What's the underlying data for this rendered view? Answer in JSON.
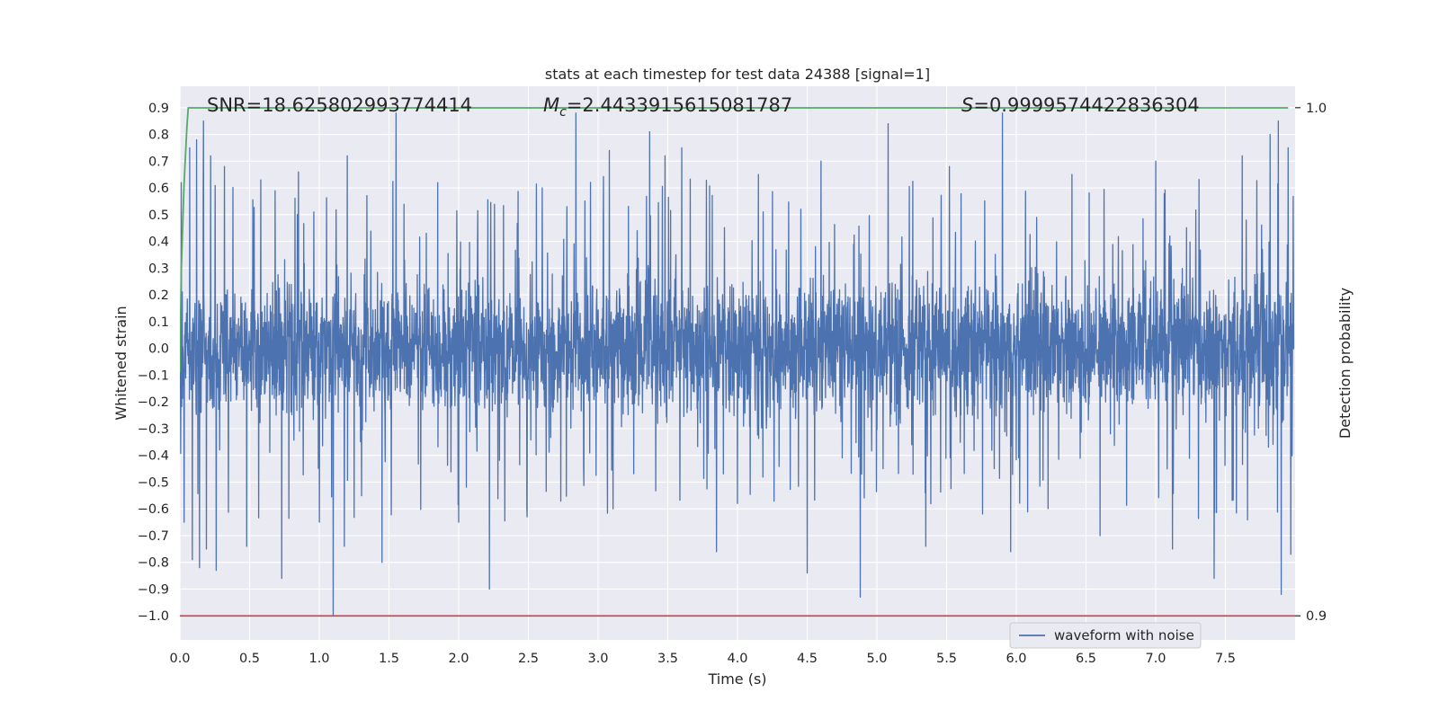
{
  "chart_data": {
    "type": "line",
    "title": "stats at each timestep for test data 24388 [signal=1]",
    "xlabel": "Time (s)",
    "ylabel": "Whitened strain",
    "y2label": "Detection probability",
    "xlim": [
      0.0,
      8.0
    ],
    "ylim": [
      -1.09,
      0.98
    ],
    "y2lim": [
      0.9,
      1.0
    ],
    "xticks": [
      0.0,
      0.5,
      1.0,
      1.5,
      2.0,
      2.5,
      3.0,
      3.5,
      4.0,
      4.5,
      5.0,
      5.5,
      6.0,
      6.5,
      7.0,
      7.5
    ],
    "xtick_labels": [
      "0.0",
      "0.5",
      "1.0",
      "1.5",
      "2.0",
      "2.5",
      "3.0",
      "3.5",
      "4.0",
      "4.5",
      "5.0",
      "5.5",
      "6.0",
      "6.5",
      "7.0",
      "7.5"
    ],
    "yticks": [
      0.9,
      0.8,
      0.7,
      0.6,
      0.5,
      0.4,
      0.3,
      0.2,
      0.1,
      0.0,
      -0.1,
      -0.2,
      -0.3,
      -0.4,
      -0.5,
      -0.6,
      -0.7,
      -0.8,
      -0.9,
      -1.0
    ],
    "ytick_labels": [
      "0.9",
      "0.8",
      "0.7",
      "0.6",
      "0.5",
      "0.4",
      "0.3",
      "0.2",
      "0.1",
      "0.0",
      "−0.1",
      "−0.2",
      "−0.3",
      "−0.4",
      "−0.5",
      "−0.6",
      "−0.7",
      "−0.8",
      "−0.9",
      "−1.0"
    ],
    "y2ticks": [
      1.0,
      0.9
    ],
    "y2tick_labels": [
      "1.0",
      "0.9"
    ],
    "grid": true,
    "legend_position": "lower-right",
    "annotations": {
      "snr": "SNR=18.625802993774414",
      "mc_symbol": "M",
      "mc_subscript": "c",
      "mc_value": "=2.4433915615081787",
      "s_symbol": "S",
      "s_value": "=0.9999574422836304"
    },
    "series": [
      {
        "name": "waveform with noise",
        "axis": "left",
        "color": "#4c72b0",
        "description_noise": "dense whitened strain, mostly within ±0.3, spikes to about ±0.85",
        "spikes": [
          [
            0.01,
            0.62
          ],
          [
            0.03,
            -0.65
          ],
          [
            0.07,
            0.75
          ],
          [
            0.09,
            -0.79
          ],
          [
            0.12,
            0.78
          ],
          [
            0.14,
            -0.82
          ],
          [
            0.17,
            0.85
          ],
          [
            0.19,
            -0.75
          ],
          [
            0.22,
            0.72
          ],
          [
            0.26,
            -0.83
          ],
          [
            0.32,
            0.68
          ],
          [
            0.48,
            -0.74
          ],
          [
            0.58,
            0.63
          ],
          [
            0.73,
            -0.86
          ],
          [
            0.85,
            0.66
          ],
          [
            1.0,
            -0.65
          ],
          [
            1.1,
            -1.0
          ],
          [
            1.18,
            -0.74
          ],
          [
            1.2,
            0.72
          ],
          [
            1.45,
            -0.8
          ],
          [
            1.55,
            0.88
          ],
          [
            1.85,
            0.62
          ],
          [
            2.0,
            -0.65
          ],
          [
            2.22,
            -0.9
          ],
          [
            2.6,
            0.6
          ],
          [
            2.84,
            0.88
          ],
          [
            3.08,
            0.74
          ],
          [
            3.37,
            0.81
          ],
          [
            3.48,
            0.72
          ],
          [
            3.6,
            0.75
          ],
          [
            3.85,
            -0.76
          ],
          [
            4.0,
            -0.58
          ],
          [
            4.15,
            0.65
          ],
          [
            4.5,
            -0.84
          ],
          [
            4.6,
            0.7
          ],
          [
            4.88,
            -0.93
          ],
          [
            5.08,
            0.84
          ],
          [
            5.35,
            -0.74
          ],
          [
            5.52,
            0.68
          ],
          [
            5.9,
            0.88
          ],
          [
            5.96,
            -0.76
          ],
          [
            6.4,
            0.65
          ],
          [
            6.6,
            -0.7
          ],
          [
            7.0,
            0.7
          ],
          [
            7.12,
            -0.75
          ],
          [
            7.42,
            -0.86
          ],
          [
            7.62,
            0.72
          ],
          [
            7.82,
            0.8
          ],
          [
            7.88,
            0.85
          ],
          [
            7.9,
            -0.92
          ],
          [
            7.95,
            0.75
          ],
          [
            7.97,
            -0.77
          ]
        ]
      },
      {
        "name": "",
        "axis": "right",
        "color": "#55a868",
        "x": [
          0.0,
          0.01,
          0.03,
          0.05,
          0.06,
          7.95
        ],
        "y": [
          0.948,
          0.968,
          0.985,
          0.996,
          0.99996,
          0.99996
        ]
      },
      {
        "name": "",
        "axis": "right",
        "color": "#c44e52",
        "x": [
          0.0,
          8.0
        ],
        "y": [
          0.9,
          0.9
        ]
      }
    ]
  }
}
